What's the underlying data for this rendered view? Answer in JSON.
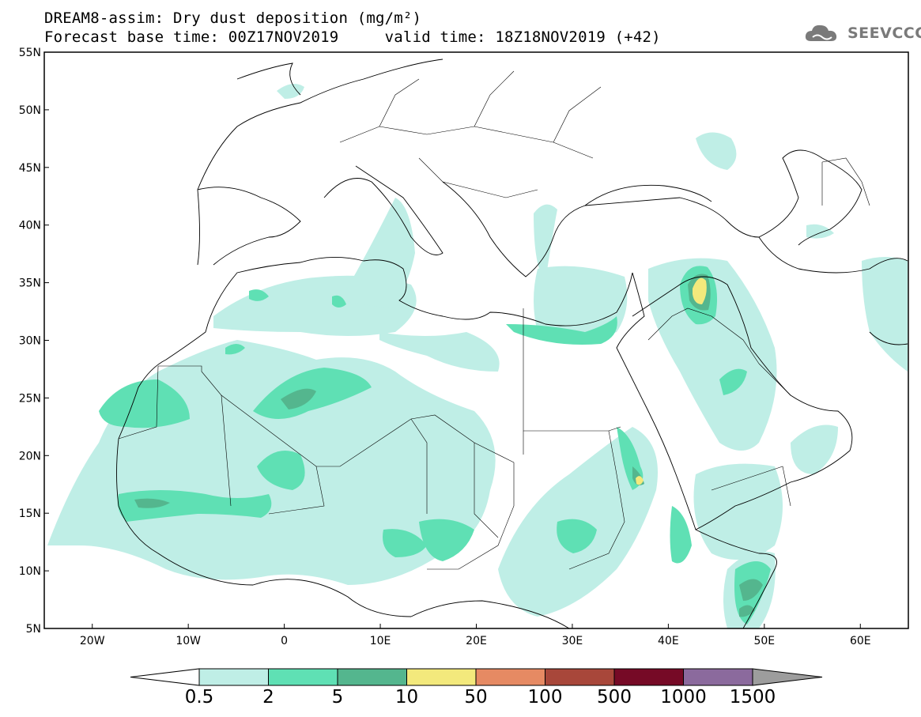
{
  "title": {
    "line1": "DREAM8-assim: Dry dust deposition (mg/m²)",
    "line2_base_label": "Forecast base time: 00Z17NOV2019",
    "line2_valid_label": "valid time: 18Z18NOV2019 (+42)"
  },
  "logo": {
    "text": "SEEVCCC",
    "icon": "cloud-logo-icon",
    "color": "#7a7a7a"
  },
  "map": {
    "lat_ticks": [
      "55N",
      "50N",
      "45N",
      "40N",
      "35N",
      "30N",
      "25N",
      "20N",
      "15N",
      "10N",
      "5N"
    ],
    "lon_ticks": [
      "20W",
      "10W",
      "0",
      "10E",
      "20E",
      "30E",
      "40E",
      "50E",
      "60E"
    ],
    "lat_range": [
      5,
      55
    ],
    "lon_range": [
      -25,
      65
    ]
  },
  "colorbar": {
    "levels": [
      "0.5",
      "2",
      "5",
      "10",
      "50",
      "100",
      "500",
      "1000",
      "1500"
    ],
    "colors": [
      "#bfeee6",
      "#5fe0b4",
      "#54b68e",
      "#f3e97c",
      "#e68a63",
      "#a8473a",
      "#760a26",
      "#8b6a9d"
    ],
    "under_color": "#ffffff",
    "over_color": "#9d9d9d"
  }
}
